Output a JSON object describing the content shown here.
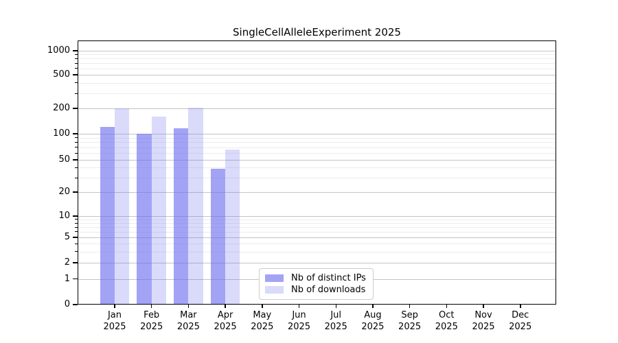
{
  "chart_data": {
    "type": "bar",
    "title": "SingleCellAlleleExperiment 2025",
    "x_ticks": [
      {
        "month": "Jan",
        "year": "2025"
      },
      {
        "month": "Feb",
        "year": "2025"
      },
      {
        "month": "Mar",
        "year": "2025"
      },
      {
        "month": "Apr",
        "year": "2025"
      },
      {
        "month": "May",
        "year": "2025"
      },
      {
        "month": "Jun",
        "year": "2025"
      },
      {
        "month": "Jul",
        "year": "2025"
      },
      {
        "month": "Aug",
        "year": "2025"
      },
      {
        "month": "Sep",
        "year": "2025"
      },
      {
        "month": "Oct",
        "year": "2025"
      },
      {
        "month": "Nov",
        "year": "2025"
      },
      {
        "month": "Dec",
        "year": "2025"
      }
    ],
    "series": [
      {
        "name": "Nb of distinct IPs",
        "color_hex": "#a9a9f7",
        "css_color": "rgba(106,106,240,0.62)",
        "values": [
          120,
          100,
          116,
          39,
          0,
          0,
          0,
          0,
          0,
          0,
          0,
          0
        ]
      },
      {
        "name": "Nb of downloads",
        "color_hex": "#d9d9f9",
        "css_color": "rgba(106,106,240,0.25)",
        "values": [
          200,
          160,
          205,
          66,
          0,
          0,
          0,
          0,
          0,
          0,
          0,
          0
        ]
      }
    ],
    "y_axis": {
      "scale": "symlog",
      "tick_values": [
        0,
        1,
        2,
        5,
        10,
        20,
        50,
        100,
        200,
        500,
        1000
      ],
      "tick_labels": [
        "0",
        "1",
        "2",
        "5",
        "10",
        "20",
        "50",
        "100",
        "200",
        "500",
        "1000"
      ],
      "minor_grid_values": [
        3,
        4,
        6,
        7,
        8,
        9,
        30,
        40,
        60,
        70,
        80,
        90,
        300,
        400,
        600,
        700,
        800,
        900
      ]
    },
    "grid": "horizontal major+minor",
    "legend_position": "lower center"
  },
  "colors": {
    "grid_major": "#c3c3c3",
    "grid_minor": "#ececec",
    "axis": "#000000",
    "background": "#ffffff"
  }
}
